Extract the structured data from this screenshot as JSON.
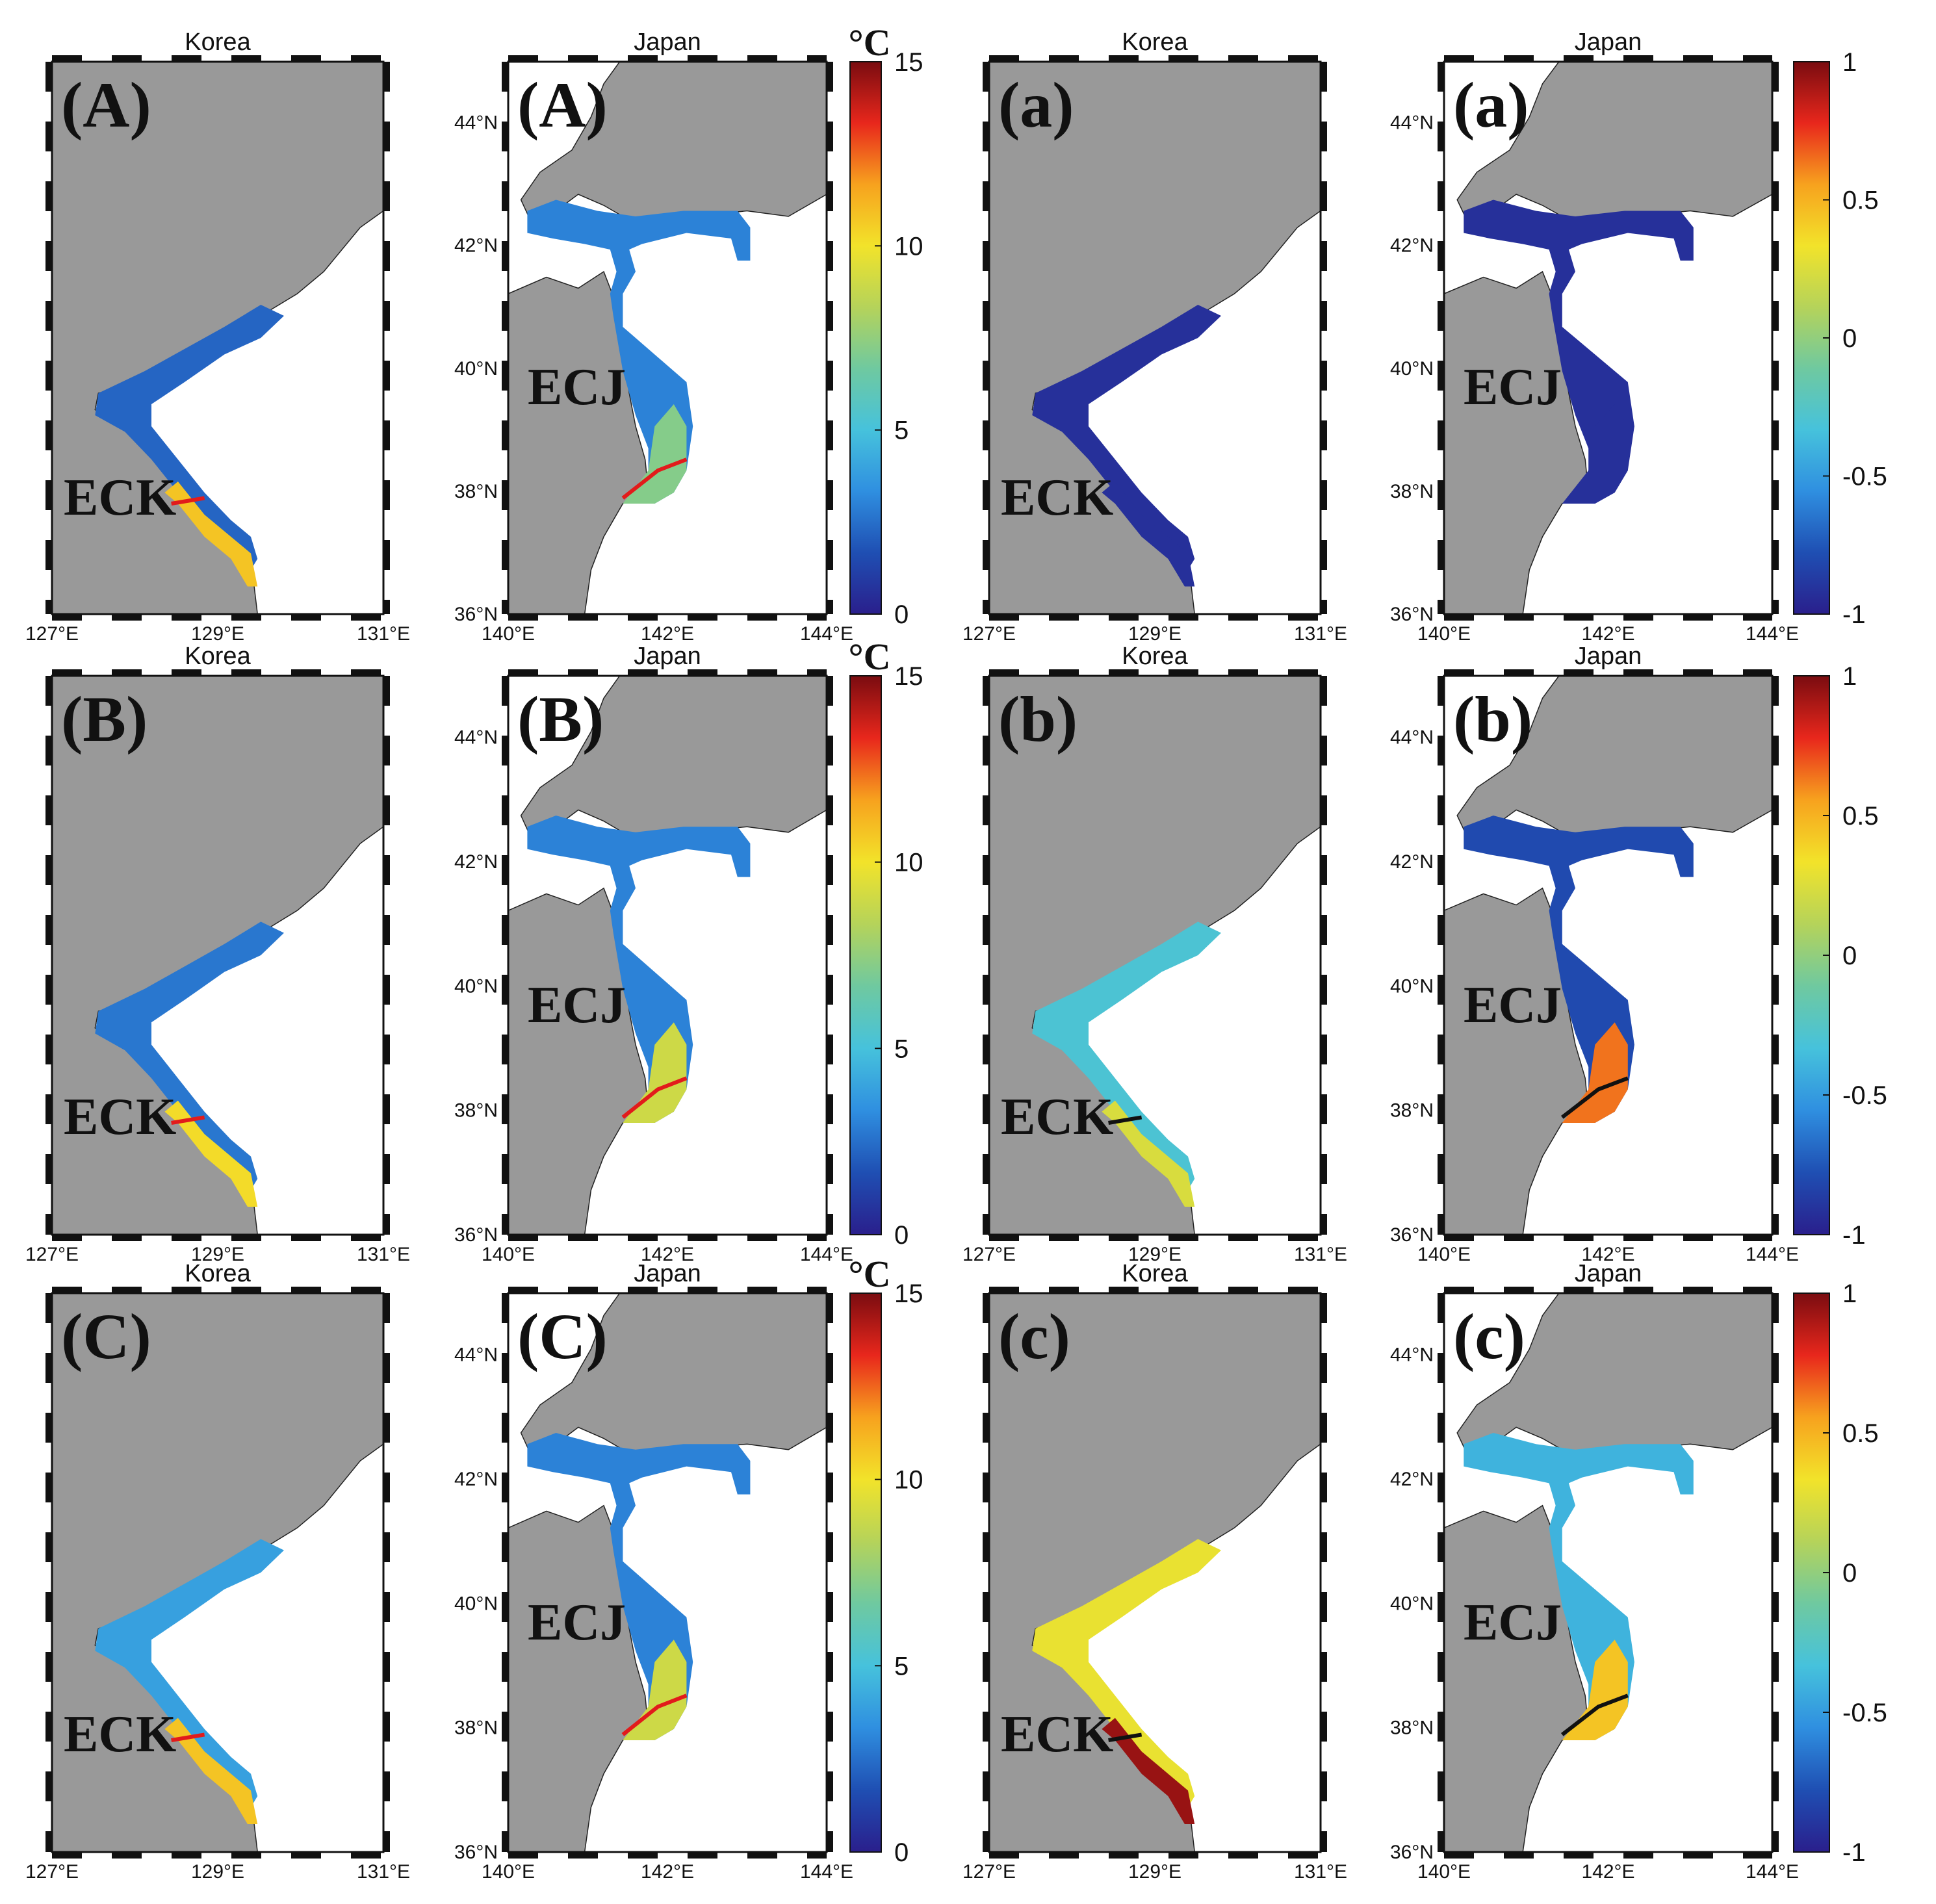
{
  "colorscale": {
    "stops": [
      "#2a1f8c",
      "#1f4fb3",
      "#2f8fe0",
      "#46c2dc",
      "#6fc9a0",
      "#b5d35a",
      "#f2e32a",
      "#f7a21e",
      "#e8271c",
      "#7a0c10"
    ],
    "land": "#999999",
    "sea": "#ffffff",
    "red_line": "#e21b1b",
    "black_line": "#111111"
  },
  "colorbars": {
    "temperature": {
      "unit": "°C",
      "ticks": [
        "15",
        "10",
        "5",
        "0"
      ],
      "range": [
        0,
        15
      ]
    },
    "correlation": {
      "ticks": [
        "1",
        "0.5",
        "0",
        "-0.5",
        "-1"
      ],
      "range": [
        -1,
        1
      ]
    }
  },
  "korea_axis": {
    "title": "Korea",
    "xticks": [
      "127°E",
      "129°E",
      "131°E"
    ]
  },
  "japan_axis": {
    "title": "Japan",
    "xticks": [
      "140°E",
      "142°E",
      "144°E"
    ],
    "yticks": [
      "44°N",
      "42°N",
      "40°N",
      "38°N",
      "36°N"
    ]
  },
  "regions": {
    "korea": "ECK",
    "japan": "ECJ"
  },
  "rows": [
    {
      "panels": [
        {
          "label": "(A)",
          "region": "korea",
          "level": 0.15,
          "south_level": 0.72,
          "line": "red"
        },
        {
          "label": "(A)",
          "region": "japan",
          "level": 0.2,
          "south_level": 0.48,
          "line": "red"
        },
        {
          "label": "(a)",
          "region": "korea",
          "level": 0.04,
          "south_level": 0.04,
          "line": "none"
        },
        {
          "label": "(a)",
          "region": "japan",
          "level": 0.04,
          "south_level": 0.04,
          "line": "none"
        }
      ]
    },
    {
      "panels": [
        {
          "label": "(B)",
          "region": "korea",
          "level": 0.18,
          "south_level": 0.68,
          "line": "red"
        },
        {
          "label": "(B)",
          "region": "japan",
          "level": 0.2,
          "south_level": 0.6,
          "line": "red"
        },
        {
          "label": "(b)",
          "region": "korea",
          "level": 0.35,
          "south_level": 0.62,
          "line": "black"
        },
        {
          "label": "(b)",
          "region": "japan",
          "level": 0.1,
          "south_level": 0.82,
          "line": "black"
        }
      ]
    },
    {
      "panels": [
        {
          "label": "(C)",
          "region": "korea",
          "level": 0.26,
          "south_level": 0.72,
          "line": "red"
        },
        {
          "label": "(C)",
          "region": "japan",
          "level": 0.2,
          "south_level": 0.6,
          "line": "red"
        },
        {
          "label": "(c)",
          "region": "korea",
          "level": 0.65,
          "south_level": 0.97,
          "line": "black"
        },
        {
          "label": "(c)",
          "region": "japan",
          "level": 0.3,
          "south_level": 0.72,
          "line": "black"
        }
      ]
    }
  ]
}
